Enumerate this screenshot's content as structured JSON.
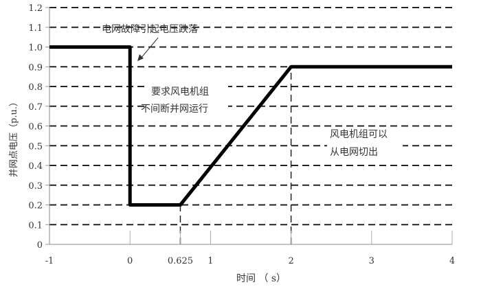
{
  "chart_data": {
    "type": "line",
    "title": "",
    "xlabel": "时间  （ s）",
    "ylabel": "并网点电压（p.u.）",
    "xlim": [
      -1,
      4
    ],
    "ylim": [
      0,
      1.2
    ],
    "x_ticks": [
      -1,
      0,
      0.625,
      1,
      2,
      3,
      4
    ],
    "x_tick_labels": [
      "-1",
      "0",
      "0.625",
      "1",
      "2",
      "3",
      "4"
    ],
    "y_ticks": [
      0,
      0.1,
      0.2,
      0.3,
      0.4,
      0.5,
      0.6,
      0.7,
      0.8,
      0.9,
      1.0,
      1.1,
      1.2
    ],
    "y_tick_labels": [
      "0",
      "0.1",
      "0.2",
      "0.3",
      "0.4",
      "0.5",
      "0.6",
      "0.7",
      "0.8",
      "0.9",
      "1.0",
      "1.1",
      "1.2"
    ],
    "grid": "horizontal dashed",
    "series": [
      {
        "x": [
          -1,
          0,
          0,
          0.625,
          2,
          4
        ],
        "y": [
          1.0,
          1.0,
          0.2,
          0.2,
          0.9,
          0.9
        ],
        "color": "#000000"
      }
    ],
    "reference_lines": [
      {
        "x": 0.625
      },
      {
        "x": 2
      }
    ],
    "annotations": [
      {
        "text": "电网故障引起电压跌落",
        "arrow_to": [
          0.1,
          0.92
        ]
      },
      {
        "text": "要求风电机组",
        "line2": "不间断并网运行"
      },
      {
        "text": "风电机组可以",
        "line2": "从电网切出"
      }
    ]
  }
}
